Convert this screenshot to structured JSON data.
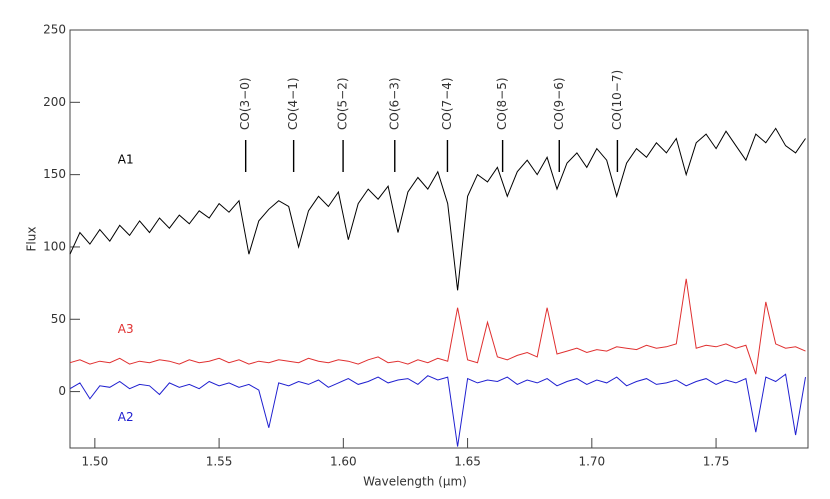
{
  "chart_data": {
    "type": "line",
    "x_label": "Wavelength (μm)",
    "y_label": "Flux",
    "xlim": [
      1.49,
      1.787
    ],
    "ylim": [
      -39,
      250
    ],
    "xticks": [
      {
        "value": 1.5,
        "label": "1.50"
      },
      1.55,
      {
        "value": 1.6,
        "label": "1.60"
      },
      1.65,
      {
        "value": 1.7,
        "label": "1.70"
      },
      1.75
    ],
    "yticks": [
      0,
      50,
      100,
      150,
      200,
      250
    ],
    "annotations": [
      {
        "label": "CO(3−0)",
        "x": 1.5607
      },
      {
        "label": "CO(4−1)",
        "x": 1.58
      },
      {
        "label": "CO(5−2)",
        "x": 1.5999
      },
      {
        "label": "CO(6−3)",
        "x": 1.6207
      },
      {
        "label": "CO(7−4)",
        "x": 1.6419
      },
      {
        "label": "CO(8−5)",
        "x": 1.6641
      },
      {
        "label": "CO(9−6)",
        "x": 1.6869
      },
      {
        "label": "CO(10−7)",
        "x": 1.7103
      }
    ],
    "x": [
      1.49,
      1.494,
      1.498,
      1.502,
      1.506,
      1.51,
      1.514,
      1.518,
      1.522,
      1.526,
      1.53,
      1.534,
      1.538,
      1.542,
      1.546,
      1.55,
      1.554,
      1.558,
      1.562,
      1.566,
      1.57,
      1.574,
      1.578,
      1.582,
      1.586,
      1.59,
      1.594,
      1.598,
      1.602,
      1.606,
      1.61,
      1.614,
      1.618,
      1.622,
      1.626,
      1.63,
      1.634,
      1.638,
      1.642,
      1.646,
      1.65,
      1.654,
      1.658,
      1.662,
      1.666,
      1.67,
      1.674,
      1.678,
      1.682,
      1.686,
      1.69,
      1.694,
      1.698,
      1.702,
      1.706,
      1.71,
      1.714,
      1.718,
      1.722,
      1.726,
      1.73,
      1.734,
      1.738,
      1.742,
      1.746,
      1.75,
      1.754,
      1.758,
      1.762,
      1.766,
      1.77,
      1.774,
      1.778,
      1.782,
      1.786
    ],
    "series": [
      {
        "name": "A1",
        "color": "#000000",
        "values": [
          95,
          110,
          102,
          112,
          104,
          115,
          108,
          118,
          110,
          120,
          113,
          122,
          116,
          125,
          120,
          130,
          124,
          132,
          95,
          118,
          126,
          132,
          128,
          100,
          125,
          135,
          128,
          138,
          105,
          130,
          140,
          133,
          142,
          110,
          138,
          148,
          140,
          152,
          130,
          70,
          135,
          150,
          145,
          155,
          135,
          152,
          160,
          150,
          162,
          140,
          158,
          165,
          155,
          168,
          160,
          135,
          158,
          168,
          162,
          172,
          165,
          175,
          150,
          172,
          178,
          168,
          180,
          170,
          160,
          178,
          172,
          182,
          170,
          165,
          175
        ]
      },
      {
        "name": "A3",
        "color": "#e03030",
        "values": [
          20,
          22,
          19,
          21,
          20,
          23,
          19,
          21,
          20,
          22,
          21,
          19,
          22,
          20,
          21,
          23,
          20,
          22,
          19,
          21,
          20,
          22,
          21,
          20,
          23,
          21,
          20,
          22,
          21,
          19,
          22,
          24,
          20,
          21,
          19,
          22,
          20,
          23,
          21,
          58,
          22,
          20,
          48,
          24,
          22,
          25,
          27,
          24,
          58,
          26,
          28,
          30,
          27,
          29,
          28,
          31,
          30,
          29,
          32,
          30,
          31,
          33,
          78,
          30,
          32,
          31,
          33,
          30,
          32,
          12,
          62,
          33,
          30,
          31,
          28
        ]
      },
      {
        "name": "A2",
        "color": "#2020d0",
        "values": [
          2,
          6,
          -5,
          4,
          3,
          7,
          2,
          5,
          4,
          -2,
          6,
          3,
          5,
          2,
          7,
          4,
          6,
          3,
          5,
          1,
          -25,
          6,
          4,
          7,
          5,
          8,
          3,
          6,
          9,
          5,
          7,
          10,
          6,
          8,
          9,
          5,
          11,
          8,
          10,
          -38,
          9,
          6,
          8,
          7,
          10,
          5,
          8,
          6,
          9,
          4,
          7,
          9,
          5,
          8,
          6,
          10,
          4,
          7,
          9,
          5,
          6,
          8,
          4,
          7,
          9,
          5,
          8,
          6,
          9,
          -28,
          10,
          7,
          12,
          -30,
          10
        ]
      }
    ]
  }
}
